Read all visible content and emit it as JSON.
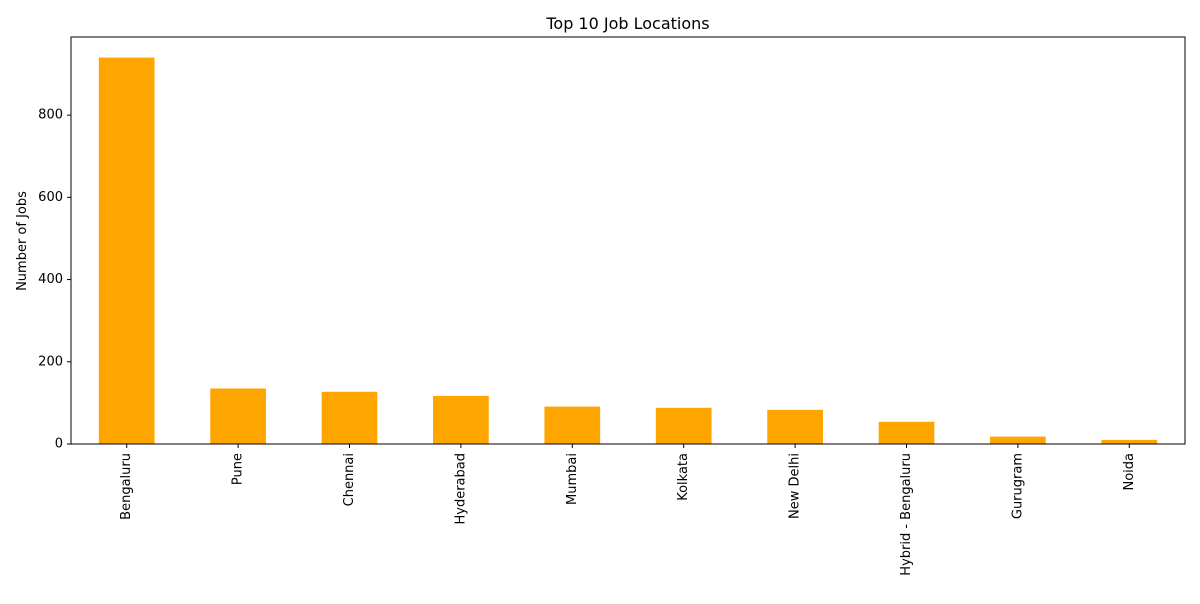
{
  "chart_data": {
    "type": "bar",
    "title": "Top 10 Job Locations",
    "xlabel": "",
    "ylabel": "Number of Jobs",
    "categories": [
      "Bengaluru",
      "Pune",
      "Chennai",
      "Hyderabad",
      "Mumbai",
      "Kolkata",
      "New Delhi",
      "Hybrid - Bengaluru",
      "Gurugram",
      "Noida"
    ],
    "values": [
      940,
      135,
      127,
      117,
      91,
      88,
      83,
      54,
      18,
      10
    ],
    "ylim": [
      0,
      990
    ],
    "yticks": [
      0,
      200,
      400,
      600,
      800
    ],
    "bar_color": "#ffa500",
    "grid": false,
    "legend": "none"
  }
}
